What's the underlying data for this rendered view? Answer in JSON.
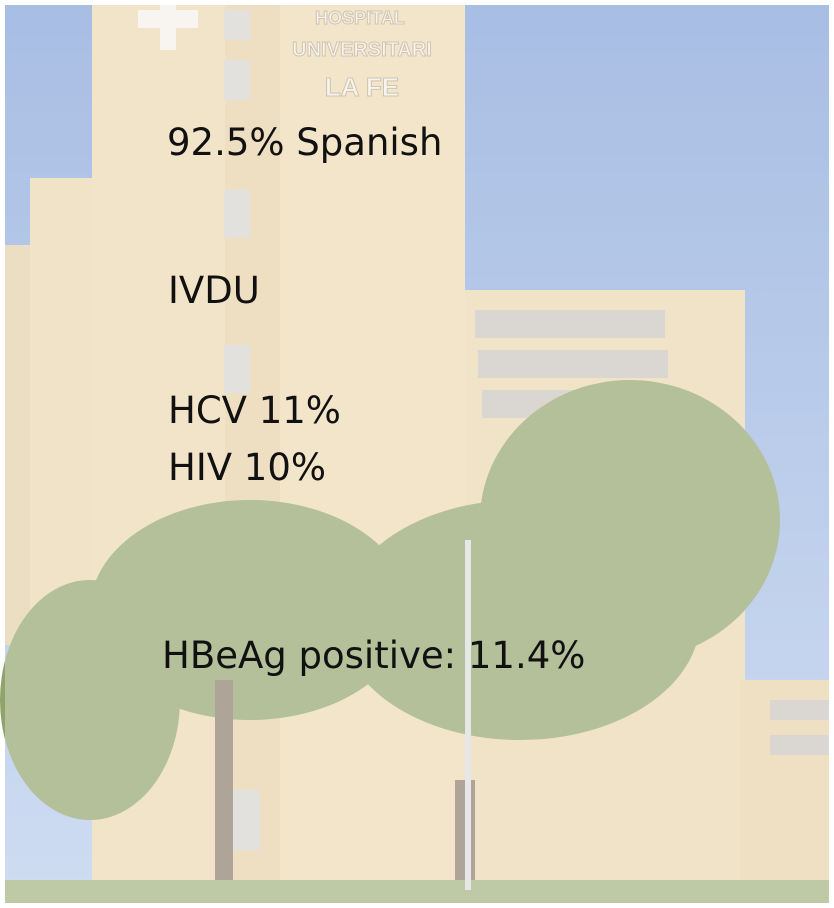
{
  "sign": {
    "line1": "HOSPITAL",
    "line2": "UNIVERSITARI",
    "line3": "LA FE"
  },
  "items": [
    "92.5% Spanish",
    "IVDU",
    "HCV 11%",
    "HIV 10%",
    "HBeAg positive: 11.4%"
  ]
}
